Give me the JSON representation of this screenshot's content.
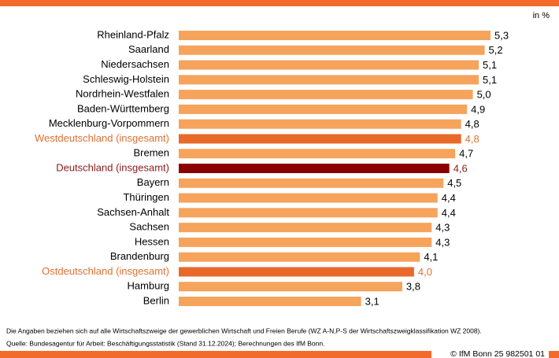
{
  "chart_data": {
    "type": "bar",
    "orientation": "horizontal",
    "unit_label": "in %",
    "categories": [
      "Rheinland-Pfalz",
      "Saarland",
      "Niedersachsen",
      "Schleswig-Holstein",
      "Nordrhein-Westfalen",
      "Baden-Württemberg",
      "Mecklenburg-Vorpommern",
      "Westdeutschland (insgesamt)",
      "Bremen",
      "Deutschland (insgesamt)",
      "Bayern",
      "Thüringen",
      "Sachsen-Anhalt",
      "Sachsen",
      "Hessen",
      "Brandenburg",
      "Ostdeutschland (insgesamt)",
      "Hamburg",
      "Berlin"
    ],
    "values": [
      5.3,
      5.2,
      5.1,
      5.1,
      5.0,
      4.9,
      4.8,
      4.8,
      4.7,
      4.6,
      4.5,
      4.4,
      4.4,
      4.3,
      4.3,
      4.1,
      4.0,
      3.8,
      3.1
    ],
    "value_labels": [
      "5,3",
      "5,2",
      "5,1",
      "5,1",
      "5,0",
      "4,9",
      "4,8",
      "4,8",
      "4,7",
      "4,6",
      "4,5",
      "4,4",
      "4,4",
      "4,3",
      "4,3",
      "4,1",
      "4,0",
      "3,8",
      "3,1"
    ],
    "colors": [
      "#f6a35c",
      "#f6a35c",
      "#f6a35c",
      "#f6a35c",
      "#f6a35c",
      "#f6a35c",
      "#f6a35c",
      "#e8692a",
      "#f6a35c",
      "#8b0000",
      "#f6a35c",
      "#f6a35c",
      "#f6a35c",
      "#f6a35c",
      "#f6a35c",
      "#f6a35c",
      "#e8692a",
      "#f6a35c",
      "#f6a35c"
    ],
    "label_colors": [
      "#000000",
      "#000000",
      "#000000",
      "#000000",
      "#000000",
      "#000000",
      "#000000",
      "#e07030",
      "#000000",
      "#8b1a1a",
      "#000000",
      "#000000",
      "#000000",
      "#000000",
      "#000000",
      "#000000",
      "#e07030",
      "#000000",
      "#000000"
    ],
    "notes": [
      "Die Angaben beziehen sich auf alle Wirtschaftszweige der gewerblichen Wirtschaft und Freien Berufe (WZ A-N,P-S der Wirtschaftszweigklassifikation WZ 2008).",
      "Quelle: Bundesagentur für Arbeit: Beschäftigungsstatistik (Stand 31.12.2024); Berechnungen des IfM Bonn."
    ],
    "copyright": "© IfM Bonn 25 982501 01"
  }
}
